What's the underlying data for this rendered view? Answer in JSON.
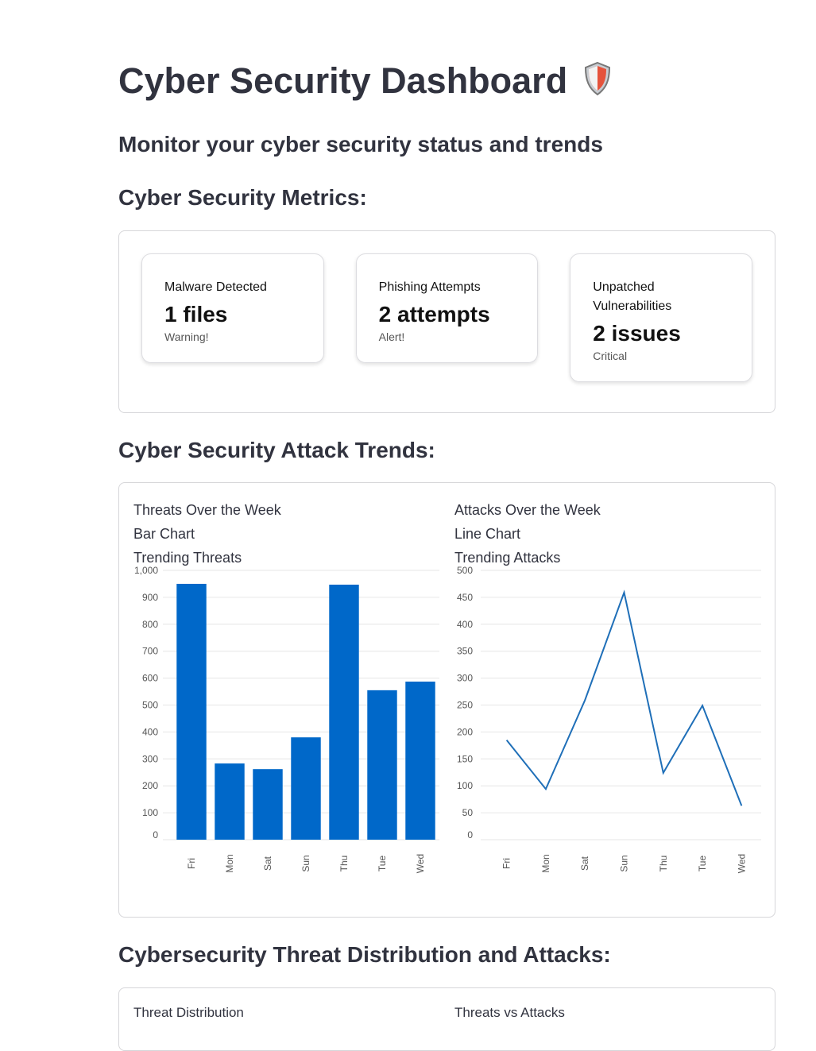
{
  "header": {
    "title": "Cyber Security Dashboard",
    "subtitle": "Monitor your cyber security status and trends"
  },
  "metrics": {
    "heading": "Cyber Security Metrics:",
    "cards": [
      {
        "label": "Malware Detected",
        "value": "1 files",
        "delta": "Warning!"
      },
      {
        "label": "Phishing Attempts",
        "value": "2 attempts",
        "delta": "Alert!"
      },
      {
        "label": "Unpatched Vulnerabilities",
        "value": "2 issues",
        "delta": "Critical"
      }
    ]
  },
  "trends": {
    "heading": "Cyber Security Attack Trends:"
  },
  "chart_data": [
    {
      "type": "bar",
      "title": "Threats Over the Week",
      "subtitle": "Bar Chart",
      "caption": "Trending Threats",
      "categories": [
        "Fri",
        "Mon",
        "Sat",
        "Sun",
        "Thu",
        "Tue",
        "Wed"
      ],
      "values": [
        950,
        283,
        262,
        380,
        947,
        555,
        587
      ],
      "color": "#0068c9",
      "ylim": [
        0,
        1000
      ],
      "yticks": [
        0,
        100,
        200,
        300,
        400,
        500,
        600,
        700,
        800,
        900,
        {
          "value": 1000,
          "label": "1,000"
        }
      ],
      "grid": true
    },
    {
      "type": "line",
      "title": "Attacks Over the Week",
      "subtitle": "Line Chart",
      "caption": "Trending Attacks",
      "categories": [
        "Fri",
        "Mon",
        "Sat",
        "Sun",
        "Thu",
        "Tue",
        "Wed"
      ],
      "values": [
        185,
        94,
        259,
        459,
        124,
        249,
        63
      ],
      "color": "#1f6fb8",
      "ylim": [
        0,
        500
      ],
      "yticks": [
        0,
        50,
        100,
        150,
        200,
        250,
        300,
        350,
        400,
        450,
        500
      ],
      "grid": true
    }
  ],
  "distribution": {
    "heading": "Cybersecurity Threat Distribution and Attacks:",
    "panels": [
      "Threat Distribution",
      "Threats vs Attacks"
    ]
  }
}
